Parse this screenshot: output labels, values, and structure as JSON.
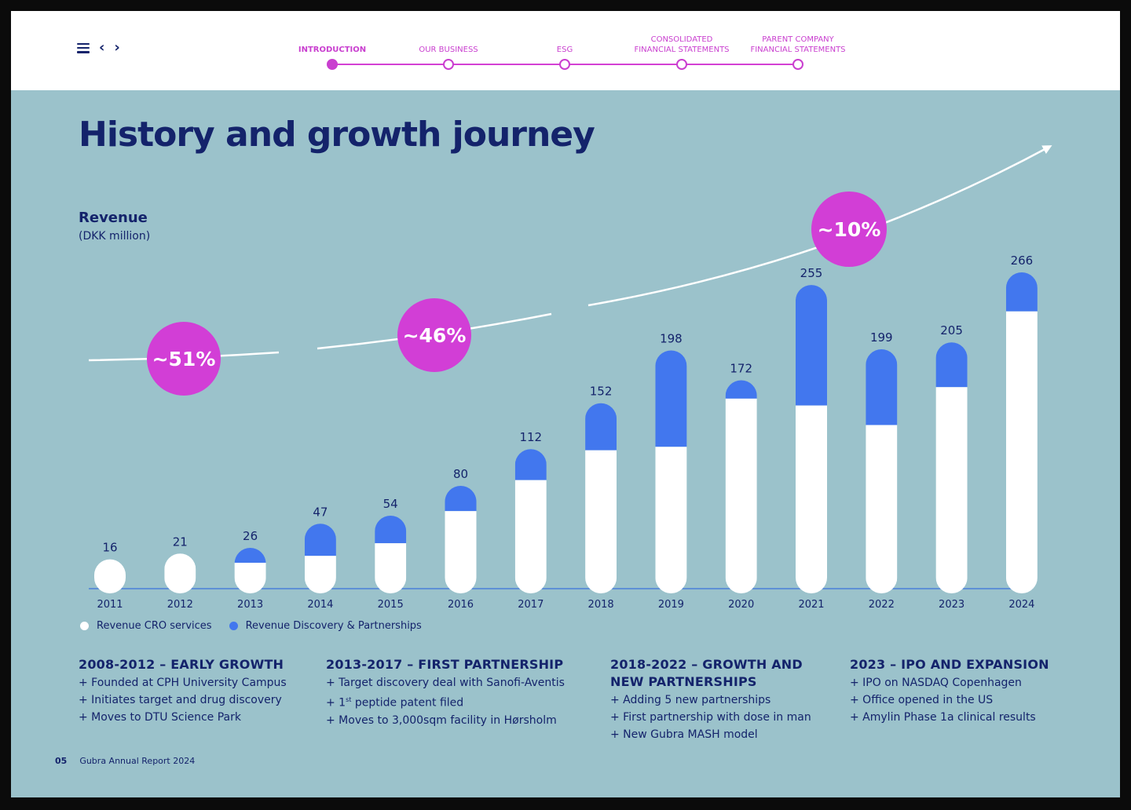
{
  "nav": {
    "steps": [
      {
        "label": "INTRODUCTION",
        "active": true
      },
      {
        "label": "OUR BUSINESS",
        "active": false
      },
      {
        "label": "ESG",
        "active": false
      },
      {
        "label": "CONSOLIDATED\nFINANCIAL STATEMENTS",
        "active": false
      },
      {
        "label": "PARENT COMPANY\nFINANCIAL STATEMENTS",
        "active": false
      }
    ]
  },
  "page_title": "History and growth journey",
  "revenue_title": "Revenue",
  "revenue_unit": "(DKK million)",
  "colors": {
    "cro": "#ffffff",
    "discovery": "#4277ee",
    "badge": "#d23ed6",
    "navy": "#14236b",
    "background": "#9bc2cb"
  },
  "chart_data": {
    "type": "bar",
    "stacked": true,
    "categories": [
      "2011",
      "2012",
      "2013",
      "2014",
      "2015",
      "2016",
      "2017",
      "2018",
      "2019",
      "2020",
      "2021",
      "2022",
      "2023",
      "2024"
    ],
    "series": [
      {
        "name": "Revenue CRO services",
        "values": [
          16,
          21,
          13,
          19,
          30,
          58,
          85,
          111,
          114,
          156,
          150,
          133,
          166,
          232
        ]
      },
      {
        "name": "Revenue Discovery & Partnerships",
        "values": [
          0,
          0,
          13,
          28,
          24,
          22,
          27,
          41,
          84,
          16,
          105,
          66,
          39,
          34
        ]
      }
    ],
    "totals": [
      16,
      21,
      26,
      47,
      54,
      80,
      112,
      152,
      198,
      172,
      255,
      199,
      205,
      266
    ],
    "ylim": [
      0,
      266
    ],
    "title": "Revenue",
    "ylabel": "(DKK million)",
    "xlabel": "",
    "legend": "bottom-left",
    "growth_badges": [
      "~51%",
      "~46%",
      "~10%"
    ]
  },
  "legend": {
    "cro_label": "Revenue CRO services",
    "discovery_label": "Revenue Discovery & Partnerships"
  },
  "timeline": [
    {
      "heading": "2008-2012 – EARLY GROWTH",
      "items": [
        "+ Founded at CPH University Campus",
        "+ Initiates target and drug discovery",
        "+ Moves to DTU Science Park"
      ]
    },
    {
      "heading": "2013-2017 – FIRST PARTNERSHIP",
      "items": [
        "+ Target discovery deal with Sanofi-Aventis",
        "+ 1st peptide patent filed",
        "+ Moves to 3,000sqm facility in Hørsholm"
      ]
    },
    {
      "heading": "2018-2022 – GROWTH AND NEW PARTNERSHIPS",
      "items": [
        "+ Adding 5 new partnerships",
        "+ First partnership with dose in man",
        "+ New Gubra MASH model"
      ]
    },
    {
      "heading": "2023 – IPO AND EXPANSION",
      "items": [
        "+ IPO on NASDAQ Copenhagen",
        "+ Office opened in the US",
        "+ Amylin Phase 1a clinical results"
      ]
    }
  ],
  "footer": {
    "page_number": "05",
    "report_name": "Gubra Annual Report 2024"
  }
}
